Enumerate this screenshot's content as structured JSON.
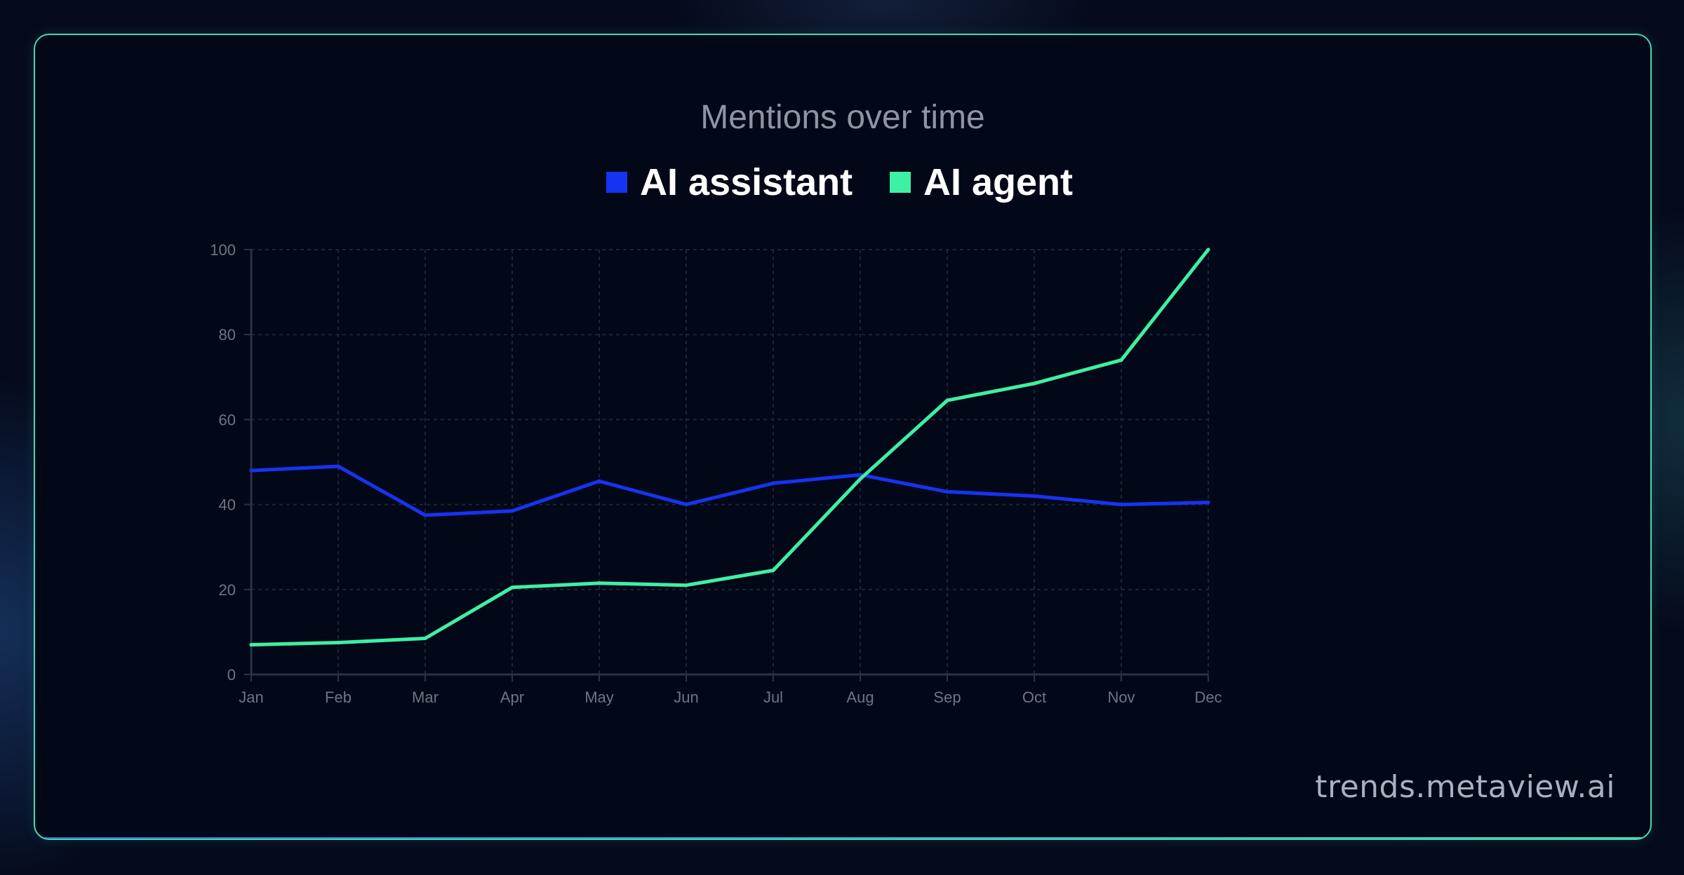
{
  "chart_data": {
    "type": "line",
    "title": "Mentions over time",
    "xlabel": "",
    "ylabel": "",
    "categories": [
      "Jan",
      "Feb",
      "Mar",
      "Apr",
      "May",
      "Jun",
      "Jul",
      "Aug",
      "Sep",
      "Oct",
      "Nov",
      "Dec"
    ],
    "ylim": [
      0,
      100
    ],
    "yticks": [
      "0",
      "20",
      "40",
      "60",
      "80",
      "100"
    ],
    "grid": true,
    "legend_position": "top",
    "series": [
      {
        "name": "AI assistant",
        "color": "#1733f2",
        "values": [
          48,
          49,
          37.5,
          38.5,
          45.5,
          40,
          45,
          47,
          43,
          42,
          40,
          40.5
        ]
      },
      {
        "name": "AI agent",
        "color": "#3ef0a3",
        "values": [
          7,
          7.5,
          8.5,
          20.5,
          21.5,
          21,
          24.5,
          46,
          64.5,
          68.5,
          74,
          100
        ]
      }
    ]
  },
  "footer": {
    "source": "trends.metaview.ai"
  },
  "colors": {
    "background": "#050b1d",
    "card": "#020817",
    "border": "#47d9b3",
    "grid": "#1b2538",
    "axis": "#2a3345",
    "tick_text": "#6e7583",
    "title_text": "#8e94a4",
    "legend_text": "#ffffff"
  }
}
